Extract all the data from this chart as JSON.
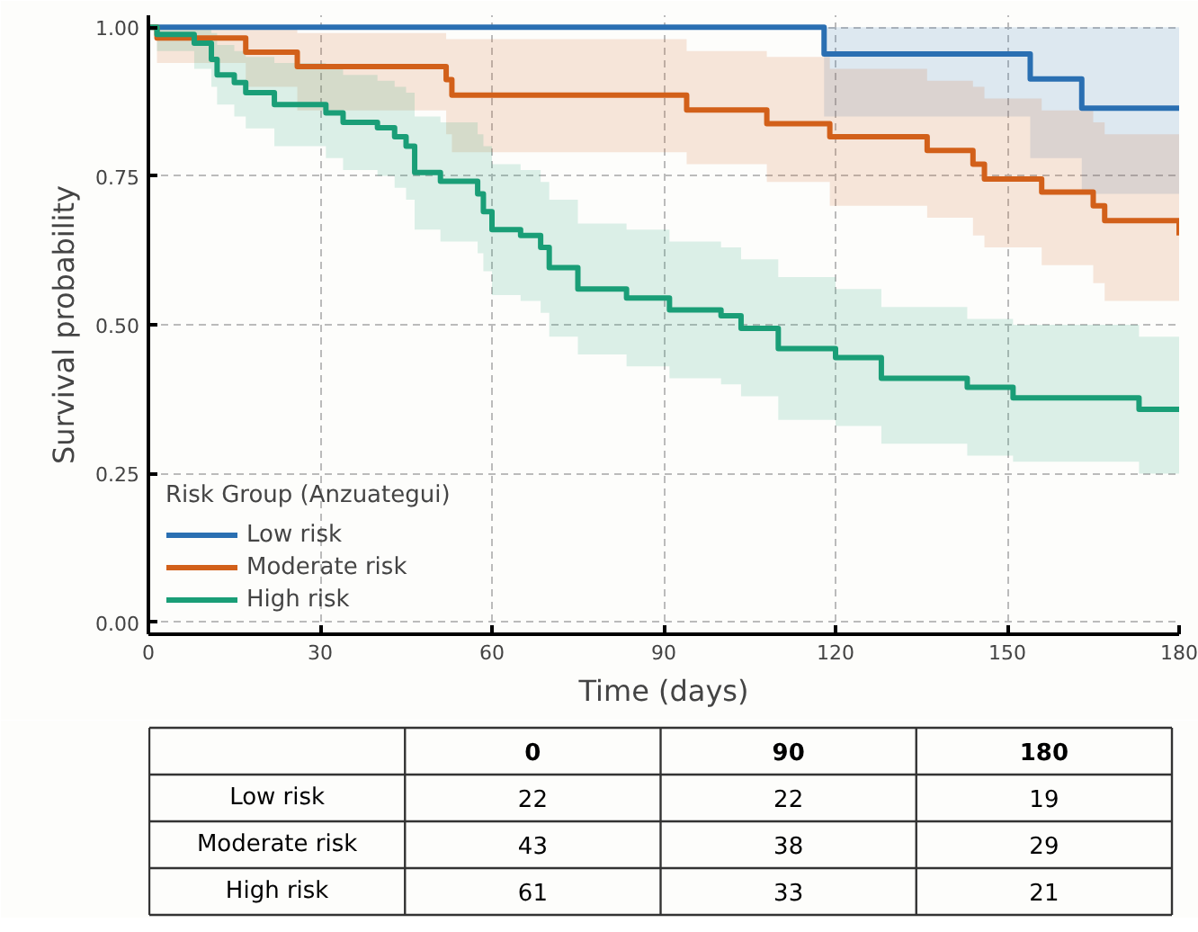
{
  "chart_data": [
    {
      "type": "step",
      "xlabel": "Time (days)",
      "ylabel": "Survival probability",
      "legend_title": "Risk Group (Anzuategui)",
      "legend": "bottom left",
      "grid": true,
      "line_style": "solid",
      "xlim": [
        0,
        180
      ],
      "ylim": [
        -0.02,
        1.02
      ],
      "xticks": [
        0,
        30,
        60,
        90,
        120,
        150,
        180
      ],
      "yticks": [
        {
          "value": 0,
          "label": "0.00"
        },
        {
          "value": 0.25,
          "label": "0.25"
        },
        {
          "value": 0.5,
          "label": "0.50"
        },
        {
          "value": 0.75,
          "label": "0.75"
        },
        {
          "value": 1,
          "label": "1.00"
        }
      ],
      "series": [
        {
          "name": "Low risk",
          "color": "#2a6fb2",
          "x": [
            0,
            118,
            154,
            163,
            180
          ],
          "values": [
            1.0,
            0.955,
            0.913,
            0.864,
            0.864
          ],
          "lower": [
            1.0,
            0.85,
            0.78,
            0.72,
            0.72
          ],
          "upper": [
            1.0,
            1.0,
            1.0,
            1.0,
            1.0
          ]
        },
        {
          "name": "Moderate risk",
          "color": "#d2601a",
          "x": [
            0,
            1.5,
            17,
            26,
            52,
            53,
            94,
            108,
            119,
            136,
            144,
            146,
            156,
            165,
            167,
            180
          ],
          "values": [
            1.0,
            0.982,
            0.958,
            0.934,
            0.912,
            0.886,
            0.861,
            0.838,
            0.816,
            0.793,
            0.77,
            0.745,
            0.723,
            0.7,
            0.675,
            0.65
          ],
          "lower": [
            1.0,
            0.94,
            0.9,
            0.86,
            0.82,
            0.79,
            0.77,
            0.74,
            0.7,
            0.68,
            0.65,
            0.63,
            0.6,
            0.57,
            0.54,
            0.54
          ],
          "upper": [
            1.0,
            1.0,
            1.0,
            0.99,
            0.98,
            0.98,
            0.96,
            0.95,
            0.93,
            0.91,
            0.9,
            0.88,
            0.86,
            0.84,
            0.82,
            0.82
          ]
        },
        {
          "name": "High risk",
          "color": "#1a9e77",
          "x": [
            0,
            1.5,
            8,
            11,
            12,
            15,
            17,
            22,
            31,
            34,
            40,
            43,
            45,
            46.5,
            51,
            57.5,
            58.5,
            60,
            65,
            68.5,
            70,
            75,
            83.5,
            91,
            100,
            103.5,
            110,
            120,
            128,
            143,
            151,
            173,
            180
          ],
          "values": [
            1.0,
            0.988,
            0.973,
            0.946,
            0.92,
            0.907,
            0.89,
            0.87,
            0.856,
            0.84,
            0.831,
            0.816,
            0.8,
            0.756,
            0.741,
            0.72,
            0.69,
            0.66,
            0.65,
            0.63,
            0.596,
            0.56,
            0.545,
            0.525,
            0.515,
            0.494,
            0.46,
            0.445,
            0.41,
            0.395,
            0.377,
            0.358,
            0.358
          ],
          "lower": [
            1.0,
            0.96,
            0.93,
            0.9,
            0.87,
            0.85,
            0.83,
            0.8,
            0.78,
            0.76,
            0.75,
            0.73,
            0.71,
            0.66,
            0.64,
            0.62,
            0.59,
            0.55,
            0.54,
            0.52,
            0.48,
            0.45,
            0.43,
            0.41,
            0.4,
            0.38,
            0.34,
            0.33,
            0.3,
            0.28,
            0.27,
            0.25,
            0.25
          ],
          "upper": [
            1.0,
            1.0,
            1.0,
            0.99,
            0.97,
            0.96,
            0.95,
            0.94,
            0.93,
            0.92,
            0.91,
            0.9,
            0.89,
            0.85,
            0.84,
            0.82,
            0.8,
            0.77,
            0.76,
            0.74,
            0.71,
            0.67,
            0.66,
            0.64,
            0.63,
            0.61,
            0.58,
            0.56,
            0.53,
            0.51,
            0.5,
            0.48,
            0.48
          ]
        }
      ]
    },
    {
      "type": "heatmap",
      "data_labels": true,
      "categories": [
        "0",
        "90",
        "180"
      ],
      "y_categories": [
        "Low risk",
        "Moderate risk",
        "High risk"
      ],
      "cells": [
        [
          22,
          22,
          19
        ],
        [
          43,
          38,
          29
        ],
        [
          61,
          33,
          21
        ]
      ]
    }
  ]
}
